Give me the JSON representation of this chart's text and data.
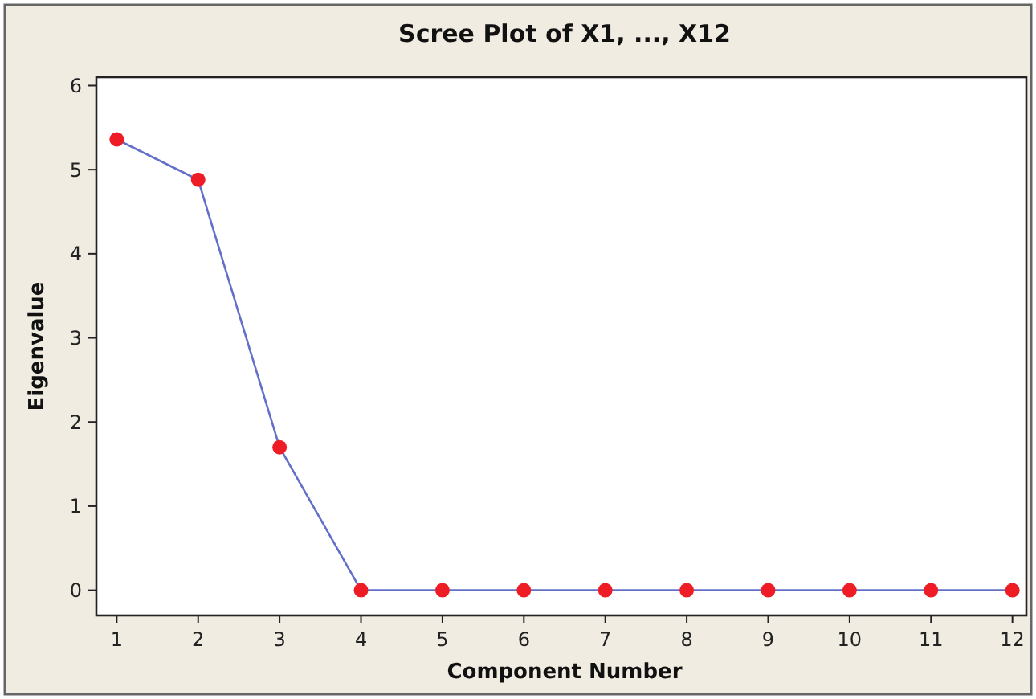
{
  "chart_data": {
    "type": "line",
    "title": "Scree Plot of X1, ..., X12",
    "xlabel": "Component Number",
    "ylabel": "Eigenvalue",
    "x": [
      1,
      2,
      3,
      4,
      5,
      6,
      7,
      8,
      9,
      10,
      11,
      12
    ],
    "series": [
      {
        "color": "#6470c8",
        "values": [
          5.36,
          4.88,
          1.7,
          0,
          0,
          0,
          0,
          0,
          0,
          0,
          0,
          0
        ]
      }
    ],
    "xlim": [
      0.75,
      12.25
    ],
    "xticks": [
      1,
      2,
      3,
      4,
      5,
      6,
      7,
      8,
      9,
      10,
      11,
      12
    ],
    "ylim": [
      -0.3,
      6.1
    ],
    "yticks": [
      0,
      1,
      2,
      3,
      4,
      5,
      6
    ],
    "marker": "circle",
    "grid": false
  }
}
